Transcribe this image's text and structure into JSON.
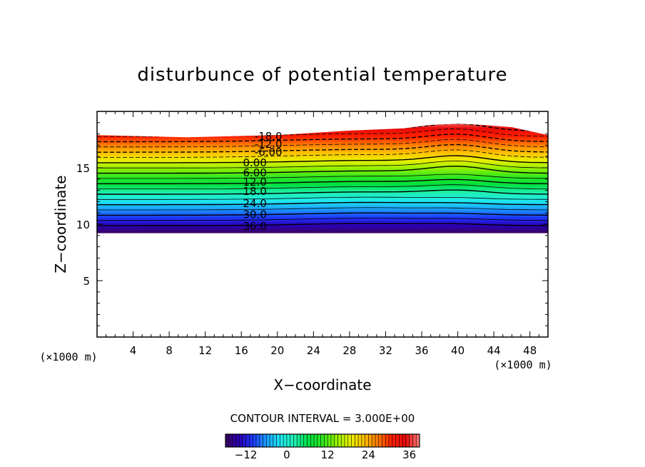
{
  "chart_data": {
    "type": "contour",
    "title": "disturbunce of potential temperature",
    "xlabel": "X−coordinate",
    "ylabel": "Z−coordinate",
    "x_unit_left": "(×1000 m)",
    "x_unit_right": "(×1000 m)",
    "xlim": [
      0,
      50
    ],
    "ylim": [
      0,
      20
    ],
    "x_ticks": [
      4,
      8,
      12,
      16,
      20,
      24,
      28,
      32,
      36,
      40,
      44,
      48
    ],
    "x_tick_labels": [
      "4",
      "8",
      "12",
      "16",
      "20",
      "24",
      "28",
      "32",
      "36",
      "40",
      "44",
      "48"
    ],
    "y_ticks": [
      5,
      10,
      15
    ],
    "y_tick_labels": [
      "5",
      "10",
      "15"
    ],
    "contour_interval_text": "CONTOUR INTERVAL = 3.000E+00",
    "contour_interval": 3,
    "contour_levels": [
      -18,
      -15,
      -12,
      -9,
      -6,
      -3,
      0,
      3,
      6,
      9,
      12,
      15,
      18,
      21,
      24,
      27,
      30,
      33,
      36
    ],
    "contour_labels": [
      {
        "text": "-18.0",
        "value": -18,
        "x": 19.0,
        "z": 17.8
      },
      {
        "text": "-12.0",
        "value": -12,
        "x": 19.0,
        "z": 17.1
      },
      {
        "text": "-6.00",
        "value": -6,
        "x": 19.0,
        "z": 16.4
      },
      {
        "text": "0.00",
        "value": 0,
        "x": 17.5,
        "z": 15.45
      },
      {
        "text": "6.00",
        "value": 6,
        "x": 17.5,
        "z": 14.55
      },
      {
        "text": "12.0",
        "value": 12,
        "x": 17.5,
        "z": 13.75
      },
      {
        "text": "18.0",
        "value": 18,
        "x": 17.5,
        "z": 12.9
      },
      {
        "text": "24.0",
        "value": 24,
        "x": 17.5,
        "z": 11.85
      },
      {
        "text": "30.0",
        "value": 30,
        "x": 17.5,
        "z": 10.85
      },
      {
        "text": "36.0",
        "value": 36,
        "x": 17.5,
        "z": 9.8
      }
    ],
    "data_top_profile": [
      [
        0,
        17.9
      ],
      [
        10,
        17.7
      ],
      [
        20,
        17.9
      ],
      [
        28,
        18.3
      ],
      [
        34,
        18.5
      ],
      [
        37,
        18.8
      ],
      [
        40,
        18.9
      ],
      [
        43,
        18.8
      ],
      [
        46,
        18.6
      ],
      [
        50,
        17.9
      ]
    ],
    "data_bottom_z": 9.2,
    "colorbar": {
      "range": [
        -18,
        39
      ],
      "tick_values": [
        -12,
        0,
        12,
        24,
        36
      ],
      "tick_labels": [
        "−12",
        "0",
        "12",
        "24",
        "36"
      ]
    },
    "colors": {
      "background": "#ffffff",
      "colormap": [
        "#3a0060",
        "#2a00b8",
        "#1e3cff",
        "#1aa0ff",
        "#1ee8ee",
        "#1ef0b0",
        "#00e040",
        "#30e820",
        "#90f000",
        "#e8f000",
        "#ffc000",
        "#ff7800",
        "#ff2000",
        "#e80a0a",
        "#ff8080"
      ]
    }
  }
}
